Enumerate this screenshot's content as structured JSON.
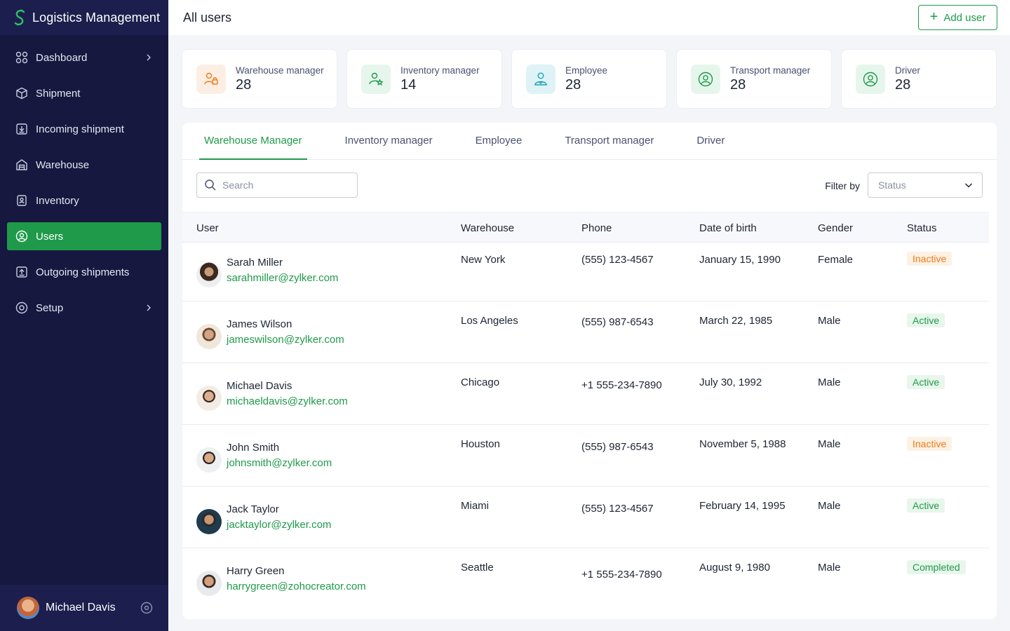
{
  "app": {
    "title": "Logistics Management",
    "accent": "#1f9a4a",
    "sidebar_bg": "#16183f"
  },
  "sidebar": {
    "items": [
      {
        "label": "Dashboard",
        "icon": "grid-icon",
        "has_chevron": true
      },
      {
        "label": "Shipment",
        "icon": "box-icon"
      },
      {
        "label": "Incoming shipment",
        "icon": "inbox-download-icon"
      },
      {
        "label": "Warehouse",
        "icon": "warehouse-icon"
      },
      {
        "label": "Inventory",
        "icon": "clipboard-icon"
      },
      {
        "label": "Users",
        "icon": "user-circle-icon",
        "active": true
      },
      {
        "label": "Outgoing shipments",
        "icon": "outbox-upload-icon"
      },
      {
        "label": "Setup",
        "icon": "settings-circle-icon",
        "has_chevron": true
      }
    ],
    "current_user": {
      "name": "Michael Davis"
    }
  },
  "header": {
    "title": "All users",
    "add_button_label": "Add user"
  },
  "summary_cards": [
    {
      "label": "Warehouse manager",
      "count": "28",
      "icon": "users-lock-icon",
      "color": "#f07b1a"
    },
    {
      "label": "Inventory manager",
      "count": "14",
      "icon": "user-star-icon",
      "color": "#1f9a4a"
    },
    {
      "label": "Employee",
      "count": "28",
      "icon": "user-badge-icon",
      "color": "#16a3b8"
    },
    {
      "label": "Transport manager",
      "count": "28",
      "icon": "user-circle-icon",
      "color": "#1f9a4a"
    },
    {
      "label": "Driver",
      "count": "28",
      "icon": "user-circle-icon",
      "color": "#1f9a4a"
    }
  ],
  "tabs": [
    {
      "label": "Warehouse Manager",
      "active": true
    },
    {
      "label": "Inventory manager"
    },
    {
      "label": "Employee"
    },
    {
      "label": "Transport manager"
    },
    {
      "label": "Driver"
    }
  ],
  "toolbar": {
    "search_placeholder": "Search",
    "filter_label": "Filter by",
    "status_select_placeholder": "Status"
  },
  "table": {
    "columns": [
      "User",
      "Warehouse",
      "Phone",
      "Date of birth",
      "Gender",
      "Status"
    ],
    "rows": [
      {
        "name": "Sarah Miller",
        "email": "sarahmiller@zylker.com",
        "warehouse": "New York",
        "phone": "(555) 123-4567",
        "dob": "January 15, 1990",
        "gender": "Female",
        "status": "Inactive"
      },
      {
        "name": "James Wilson",
        "email": "jameswilson@zylker.com",
        "warehouse": "Los Angeles",
        "phone": "(555) 987-6543",
        "dob": "March 22, 1985",
        "gender": "Male",
        "status": "Active"
      },
      {
        "name": "Michael Davis",
        "email": "michaeldavis@zylker.com",
        "warehouse": "Chicago",
        "phone": "+1 555-234-7890",
        "dob": "July 30, 1992",
        "gender": "Male",
        "status": "Active"
      },
      {
        "name": "John Smith",
        "email": "johnsmith@zylker.com",
        "warehouse": "Houston",
        "phone": "(555) 987-6543",
        "dob": "November 5, 1988",
        "gender": "Male",
        "status": "Inactive"
      },
      {
        "name": "Jack Taylor",
        "email": "jacktaylor@zylker.com",
        "warehouse": "Miami",
        "phone": "(555) 123-4567",
        "dob": "February 14, 1995",
        "gender": "Male",
        "status": "Active"
      },
      {
        "name": "Harry Green",
        "email": "harrygreen@zohocreator.com",
        "warehouse": "Seattle",
        "phone": "+1 555-234-7890",
        "dob": "August 9, 1980",
        "gender": "Male",
        "status": "Completed"
      }
    ]
  },
  "status_colors": {
    "Inactive": "#f07b1a",
    "Active": "#1f9a4a",
    "Completed": "#1f9a4a"
  }
}
